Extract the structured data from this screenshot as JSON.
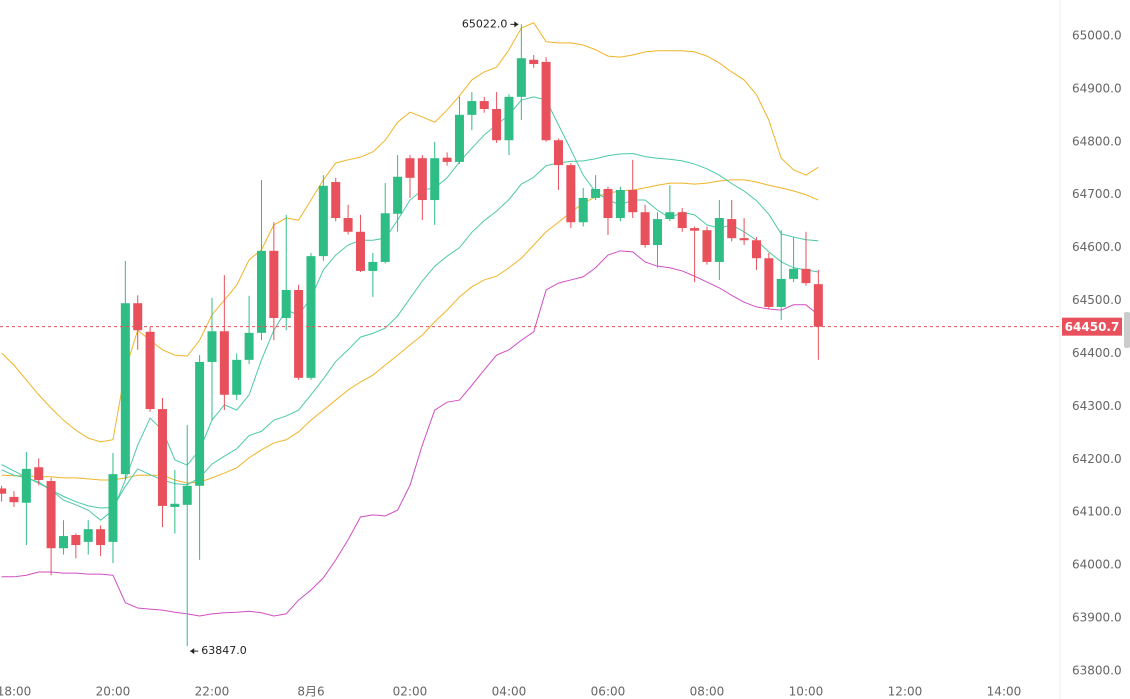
{
  "chart_data": {
    "type": "candlestick",
    "categories": [
      null,
      "18:00",
      null,
      null,
      null,
      null,
      null,
      null,
      null,
      "20:00",
      null,
      null,
      null,
      null,
      null,
      null,
      null,
      "22:00",
      null,
      null,
      null,
      null,
      null,
      null,
      null,
      "8月6",
      null,
      null,
      null,
      null,
      null,
      null,
      null,
      "02:00",
      null,
      null,
      null,
      null,
      null,
      null,
      null,
      "04:00",
      null,
      null,
      null,
      null,
      null,
      null,
      null,
      "06:00",
      null,
      null,
      null,
      null,
      null,
      null,
      null,
      "08:00",
      null,
      null,
      null,
      null,
      null,
      null,
      null,
      "10:00",
      null,
      null,
      null,
      null,
      null,
      null,
      null,
      "12:00",
      null,
      null,
      null,
      null,
      null,
      null,
      null,
      "14:00",
      null,
      null,
      null,
      null
    ],
    "open": [
      64145,
      64129,
      64118,
      64185,
      64159,
      64032,
      64057,
      64044,
      64068,
      64044,
      64172,
      64495,
      64441,
      64295,
      64110,
      64114,
      64150,
      64384,
      64442,
      64322,
      64388,
      64439,
      64594,
      64467,
      64520,
      64354,
      64584,
      64724,
      64656,
      64630,
      64556,
      64573,
      64664,
      64769,
      64769,
      64690,
      64770,
      64762,
      64851,
      64877,
      64862,
      64803,
      64885,
      64955,
      64951,
      64803,
      64756,
      64648,
      64694,
      64711,
      64656,
      64709,
      64667,
      64605,
      64654,
      64667,
      64637,
      64633,
      64573,
      64654,
      64618,
      64614,
      64580,
      64488,
      64541,
      64560,
      64531,
      null,
      null,
      null,
      null,
      null,
      null,
      null,
      null,
      null,
      null,
      null,
      null,
      null,
      null,
      null,
      null,
      null,
      null,
      null
    ],
    "high": [
      64150,
      64140,
      64214,
      64202,
      64165,
      64085,
      64060,
      64085,
      64075,
      64212,
      64575,
      64510,
      64450,
      64316,
      64180,
      64265,
      64397,
      64505,
      64548,
      64400,
      64509,
      64728,
      64648,
      64662,
      64530,
      64590,
      64737,
      64732,
      64681,
      64662,
      64590,
      64722,
      64775,
      64775,
      64775,
      64800,
      64780,
      64885,
      64894,
      64885,
      64894,
      64890,
      65022,
      64964,
      64960,
      64806,
      64760,
      64713,
      64737,
      64715,
      64715,
      64766,
      64681,
      64667,
      64718,
      64675,
      64640,
      64640,
      64690,
      64690,
      64656,
      64620,
      64590,
      64633,
      64620,
      64630,
      64558,
      null,
      null,
      null,
      null,
      null,
      null,
      null,
      null,
      null,
      null,
      null,
      null,
      null,
      null,
      null,
      null,
      null,
      null,
      null
    ],
    "low": [
      64120,
      64110,
      64038,
      64151,
      63981,
      64020,
      64013,
      64020,
      64017,
      64004,
      64161,
      64407,
      64290,
      64072,
      64060,
      63847,
      64010,
      64274,
      64293,
      64312,
      64380,
      64425,
      64425,
      64444,
      64350,
      64350,
      64575,
      64650,
      64625,
      64554,
      64507,
      64570,
      64630,
      64694,
      64652,
      64643,
      64755,
      64758,
      64822,
      64855,
      64798,
      64775,
      64841,
      64940,
      64800,
      64709,
      64637,
      64640,
      64690,
      64624,
      64650,
      64656,
      64600,
      64562,
      64650,
      64630,
      64535,
      64568,
      64539,
      64612,
      64605,
      64558,
      64485,
      64463,
      64535,
      64528,
      64388,
      null,
      null,
      null,
      null,
      null,
      null,
      null,
      null,
      null,
      null,
      null,
      null,
      null,
      null,
      null,
      null,
      null,
      null,
      null
    ],
    "close": [
      64135,
      64119,
      64182,
      64161,
      64032,
      64055,
      64038,
      64068,
      64038,
      64172,
      64495,
      64444,
      64295,
      64112,
      64116,
      64150,
      64384,
      64442,
      64322,
      64388,
      64439,
      64594,
      64467,
      64520,
      64354,
      64584,
      64717,
      64656,
      64630,
      64556,
      64573,
      64665,
      64734,
      64732,
      64690,
      64769,
      64762,
      64851,
      64877,
      64862,
      64803,
      64885,
      64958,
      64947,
      64803,
      64756,
      64648,
      64694,
      64711,
      64656,
      64709,
      64667,
      64605,
      64654,
      64667,
      64637,
      64632,
      64573,
      64656,
      64618,
      64614,
      64580,
      64488,
      64541,
      64560,
      64533,
      64450.7,
      null,
      null,
      null,
      null,
      null,
      null,
      null,
      null,
      null,
      null,
      null,
      null,
      null,
      null,
      null,
      null,
      null,
      null,
      null
    ],
    "up_color": "#2ebd85",
    "down_color": "#e8505b",
    "lines": [
      {
        "color": "#f0b429",
        "values": [
          64401,
          64378,
          64350,
          64322,
          64297,
          64274,
          64255,
          64240,
          64233,
          64237,
          64369,
          64444,
          64425,
          64407,
          64397,
          64395,
          64425,
          64473,
          64501,
          64529,
          64577,
          64596,
          64643,
          64656,
          64652,
          64690,
          64728,
          64760,
          64766,
          64771,
          64781,
          64803,
          64837,
          64856,
          64847,
          64837,
          64860,
          64887,
          64917,
          64932,
          64941,
          64974,
          65015,
          65025,
          64989,
          64987,
          64987,
          64983,
          64974,
          64962,
          64960,
          64964,
          64970,
          64972,
          64972,
          64972,
          64970,
          64962,
          64949,
          64932,
          64917,
          64889,
          64841,
          64769,
          64747,
          64737,
          64752,
          null,
          null,
          null,
          null,
          null,
          null,
          null,
          null,
          null,
          null,
          null,
          null,
          null,
          null,
          null,
          null,
          null,
          null,
          null
        ]
      },
      {
        "color": "#f0b429",
        "values": [
          64170,
          64169,
          64169,
          64167,
          64167,
          64165,
          64165,
          64163,
          64161,
          64161,
          64165,
          64170,
          64170,
          64170,
          64161,
          64155,
          64157,
          64165,
          64174,
          64184,
          64203,
          64218,
          64231,
          64237,
          64252,
          64274,
          64293,
          64312,
          64331,
          64346,
          64359,
          64378,
          64397,
          64416,
          64435,
          64460,
          64482,
          64507,
          64526,
          64539,
          64546,
          64562,
          64580,
          64605,
          64630,
          64648,
          64667,
          64684,
          64696,
          64703,
          64707,
          64709,
          64713,
          64718,
          64722,
          64722,
          64720,
          64722,
          64726,
          64728,
          64728,
          64724,
          64718,
          64713,
          64707,
          64700,
          64690,
          null,
          null,
          null,
          null,
          null,
          null,
          null,
          null,
          null,
          null,
          null,
          null,
          null,
          null,
          null,
          null,
          null,
          null,
          null
        ]
      },
      {
        "color": "#4cc9a6",
        "values": [
          64190,
          64178,
          64166,
          64155,
          64142,
          64130,
          64120,
          64112,
          64108,
          64109,
          64149,
          64182,
          64171,
          64161,
          64154,
          64152,
          64165,
          64191,
          64206,
          64220,
          64245,
          64253,
          64274,
          64282,
          64293,
          64322,
          64352,
          64385,
          64407,
          64431,
          64438,
          64448,
          64471,
          64504,
          64537,
          64565,
          64584,
          64600,
          64629,
          64651,
          64669,
          64691,
          64720,
          64733,
          64755,
          64760,
          64763,
          64764,
          64768,
          64774,
          64777,
          64778,
          64772,
          64769,
          64767,
          64764,
          64758,
          64749,
          64737,
          64721,
          64707,
          64689,
          64663,
          64626,
          64620,
          64615,
          64613,
          null,
          null,
          null,
          null,
          null,
          null,
          null,
          null,
          null,
          null,
          null,
          null,
          null,
          null,
          null,
          null,
          null,
          null,
          null
        ]
      },
      {
        "color": "#4cc9a6",
        "values": [
          64180,
          64170,
          64165,
          64157,
          64142,
          64123,
          64114,
          64104,
          64085,
          64104,
          64161,
          64227,
          64278,
          64255,
          64199,
          64189,
          64218,
          64274,
          64303,
          64293,
          64322,
          64388,
          64444,
          64482,
          64473,
          64505,
          64558,
          64586,
          64605,
          64614,
          64614,
          64618,
          64652,
          64690,
          64709,
          64713,
          64732,
          64762,
          64788,
          64813,
          64832,
          64851,
          64879,
          64885,
          64879,
          64832,
          64785,
          64737,
          64705,
          64690,
          64681,
          64690,
          64690,
          64671,
          64656,
          64667,
          64662,
          64643,
          64637,
          64643,
          64630,
          64614,
          64592,
          64573,
          64562,
          64558,
          64554,
          null,
          null,
          null,
          null,
          null,
          null,
          null,
          null,
          null,
          null,
          null,
          null,
          null,
          null,
          null,
          null,
          null,
          null,
          null
        ]
      },
      {
        "color": "#d04fc4",
        "values": [
          63978,
          63978,
          63981,
          63987,
          63987,
          63985,
          63985,
          63983,
          63983,
          63981,
          63929,
          63919,
          63917,
          63915,
          63911,
          63908,
          63904,
          63908,
          63910,
          63911,
          63913,
          63910,
          63904,
          63908,
          63934,
          63953,
          63976,
          64010,
          64048,
          64091,
          64095,
          64093,
          64104,
          64151,
          64227,
          64293,
          64308,
          64312,
          64340,
          64369,
          64397,
          64407,
          64425,
          64441,
          64520,
          64533,
          64539,
          64545,
          64562,
          64586,
          64594,
          64592,
          64573,
          64565,
          64562,
          64556,
          64546,
          64535,
          64524,
          64510,
          64497,
          64488,
          64484,
          64482,
          64492,
          64492,
          64473,
          null,
          null,
          null,
          null,
          null,
          null,
          null,
          null,
          null,
          null,
          null,
          null,
          null,
          null,
          null,
          null,
          null,
          null,
          null
        ]
      }
    ],
    "annotations": [
      {
        "value": 65022,
        "label": "65022.0"
      },
      {
        "value": 63847,
        "label": "63847.0"
      }
    ],
    "ylim": [
      63783,
      65068
    ],
    "yticks": [
      {
        "value": 63800,
        "label": "63800.0"
      },
      {
        "value": 63900,
        "label": "63900.0"
      },
      {
        "value": 64000,
        "label": "64000.0"
      },
      {
        "value": 64100,
        "label": "64100.0"
      },
      {
        "value": 64200,
        "label": "64200.0"
      },
      {
        "value": 64300,
        "label": "64300.0"
      },
      {
        "value": 64400,
        "label": "64400.0"
      },
      {
        "value": 64500,
        "label": "64500.0"
      },
      {
        "value": 64600,
        "label": "64600.0"
      },
      {
        "value": 64700,
        "label": "64700.0"
      },
      {
        "value": 64800,
        "label": "64800.0"
      },
      {
        "value": 64900,
        "label": "64900.0"
      },
      {
        "value": 65000,
        "label": "65000.0"
      }
    ],
    "grid": false
  }
}
